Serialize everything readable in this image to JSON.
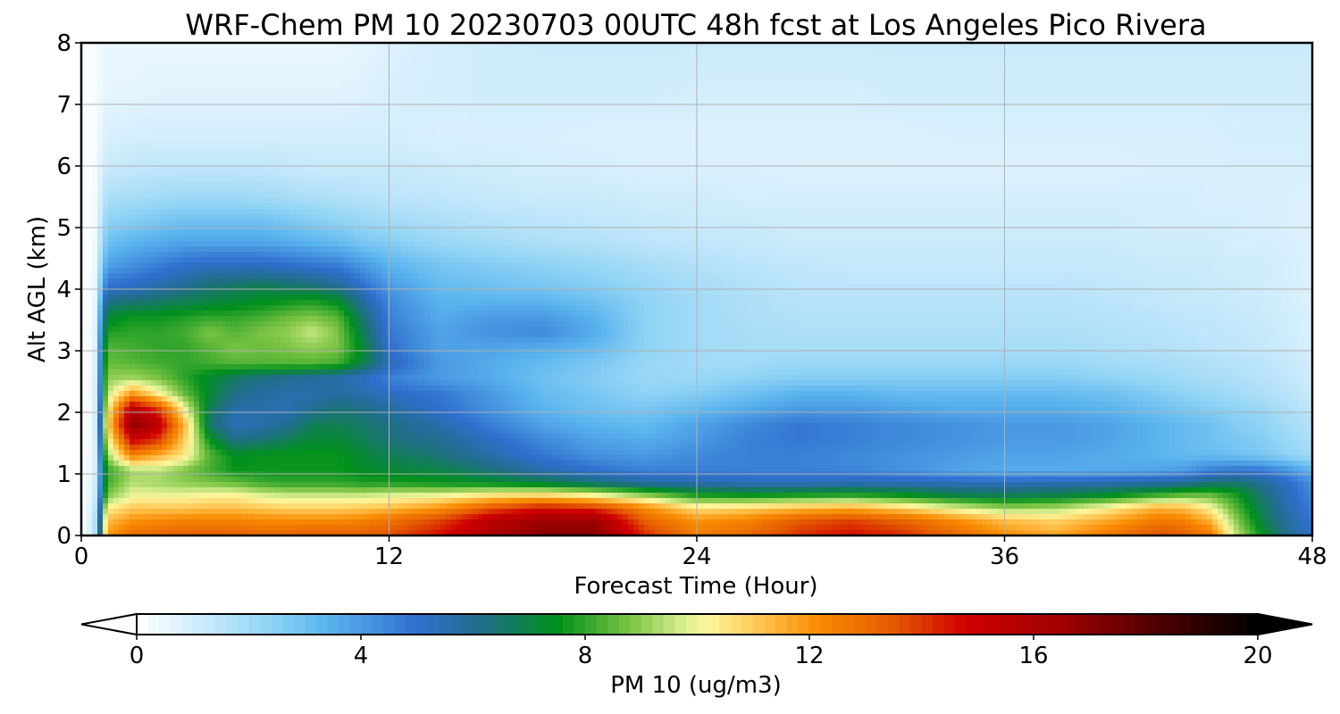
{
  "chart_data": {
    "type": "heatmap",
    "title": "WRF-Chem PM 10  20230703 00UTC 48h fcst at Los Angeles Pico Rivera",
    "xlabel": "Forecast Time (Hour)",
    "ylabel": "Alt AGL (km)",
    "xlim": [
      0,
      48
    ],
    "ylim": [
      0,
      8
    ],
    "xticks": [
      "0",
      "12",
      "24",
      "36",
      "48"
    ],
    "yticks": [
      "0",
      "1",
      "2",
      "3",
      "4",
      "5",
      "6",
      "7",
      "8"
    ],
    "grid": true,
    "colorbar": {
      "label": "PM 10  (ug/m3)",
      "range": [
        0,
        20
      ],
      "ticks": [
        "0",
        "4",
        "8",
        "12",
        "16",
        "20"
      ],
      "extend": "both",
      "colors": [
        {
          "v": 0,
          "c": "#ffffff"
        },
        {
          "v": 1,
          "c": "#d4eefc"
        },
        {
          "v": 2.4,
          "c": "#8fd3f5"
        },
        {
          "v": 3.4,
          "c": "#5ab4ee"
        },
        {
          "v": 5,
          "c": "#2f6fcf"
        },
        {
          "v": 6.2,
          "c": "#1f6e86"
        },
        {
          "v": 7.5,
          "c": "#00901c"
        },
        {
          "v": 8.8,
          "c": "#7cc444"
        },
        {
          "v": 9.8,
          "c": "#ddf094"
        },
        {
          "v": 10.2,
          "c": "#fff59a"
        },
        {
          "v": 11.2,
          "c": "#ffc04a"
        },
        {
          "v": 12.2,
          "c": "#f88a00"
        },
        {
          "v": 13.5,
          "c": "#e45a00"
        },
        {
          "v": 14.8,
          "c": "#d00000"
        },
        {
          "v": 16.5,
          "c": "#a00000"
        },
        {
          "v": 18.5,
          "c": "#420000"
        },
        {
          "v": 20,
          "c": "#000000"
        }
      ]
    },
    "x": [
      0,
      0.5,
      1,
      2,
      3,
      4,
      5,
      6,
      7,
      8,
      9,
      10,
      11,
      12,
      14,
      16,
      18,
      20,
      22,
      24,
      26,
      28,
      30,
      32,
      34,
      36,
      38,
      40,
      42,
      43,
      44,
      45,
      46,
      47,
      48
    ],
    "y": [
      0.05,
      0.25,
      0.45,
      0.65,
      0.85,
      1.05,
      1.3,
      1.55,
      1.8,
      2.05,
      2.3,
      2.55,
      2.8,
      3.05,
      3.3,
      3.55,
      3.8,
      4.05,
      4.4,
      4.75,
      5.1,
      5.5,
      5.9,
      6.5,
      7.2,
      8.0
    ],
    "z": [
      [
        0,
        1.2,
        11.8,
        12.8,
        13.0,
        13.2,
        13.2,
        13.2,
        13.0,
        13.0,
        13.2,
        13.2,
        13.2,
        13.5,
        14.5,
        16.0,
        17.0,
        17.0,
        14.0,
        12.5,
        13.0,
        14.0,
        14.5,
        14.0,
        13.0,
        12.0,
        11.5,
        12.5,
        13.5,
        13.2,
        12.5,
        9.5,
        7.5,
        6.0,
        5.0
      ],
      [
        0,
        1.2,
        11.2,
        12.0,
        12.2,
        12.4,
        12.4,
        12.4,
        12.2,
        12.2,
        12.2,
        12.2,
        12.4,
        12.8,
        13.8,
        15.5,
        16.5,
        16.5,
        13.2,
        12.0,
        12.4,
        13.4,
        13.8,
        13.2,
        12.2,
        11.2,
        10.8,
        11.6,
        12.6,
        12.4,
        11.4,
        9.0,
        7.0,
        5.8,
        4.8
      ],
      [
        0,
        1.0,
        10.2,
        11.0,
        11.0,
        11.0,
        11.2,
        11.2,
        11.0,
        10.8,
        10.8,
        10.8,
        11.0,
        11.2,
        12.0,
        13.5,
        14.5,
        14.0,
        12.2,
        10.5,
        10.8,
        11.2,
        11.5,
        10.8,
        9.8,
        9.0,
        9.2,
        10.2,
        11.5,
        11.2,
        10.2,
        8.4,
        6.8,
        5.6,
        4.6
      ],
      [
        0,
        0.8,
        8.8,
        10.0,
        10.0,
        10.0,
        10.2,
        10.2,
        9.8,
        9.6,
        9.6,
        9.6,
        9.6,
        9.8,
        10.0,
        10.6,
        10.8,
        10.2,
        9.0,
        7.8,
        7.6,
        7.8,
        8.0,
        7.6,
        7.0,
        6.8,
        7.0,
        7.4,
        8.2,
        8.6,
        8.6,
        7.8,
        6.5,
        5.4,
        4.4
      ],
      [
        0,
        0.8,
        8.2,
        9.4,
        9.2,
        9.0,
        8.8,
        8.6,
        8.2,
        8.0,
        8.0,
        8.0,
        7.8,
        7.8,
        7.6,
        7.4,
        7.0,
        6.4,
        5.8,
        5.6,
        5.4,
        5.4,
        5.5,
        5.5,
        5.4,
        5.4,
        5.5,
        5.6,
        5.8,
        6.0,
        6.4,
        6.6,
        6.0,
        5.2,
        4.2
      ],
      [
        0,
        0.6,
        8.0,
        9.2,
        9.4,
        8.8,
        8.2,
        7.6,
        7.6,
        7.6,
        7.6,
        7.6,
        7.4,
        7.2,
        7.0,
        6.4,
        5.6,
        5.0,
        4.6,
        4.6,
        4.6,
        4.6,
        4.5,
        4.2,
        3.8,
        3.6,
        3.6,
        3.6,
        3.8,
        4.0,
        4.6,
        4.9,
        4.8,
        4.2,
        3.4
      ],
      [
        0,
        0.5,
        9.0,
        12.5,
        11.5,
        10.5,
        8.4,
        7.4,
        7.6,
        7.6,
        7.6,
        7.6,
        7.2,
        6.8,
        6.4,
        5.6,
        4.8,
        4.2,
        4.0,
        4.4,
        4.6,
        4.6,
        4.4,
        4.2,
        4.0,
        3.8,
        3.8,
        3.6,
        3.4,
        3.2,
        3.2,
        3.0,
        2.8,
        2.4,
        2.0
      ],
      [
        0,
        0.5,
        9.8,
        15.0,
        14.0,
        11.0,
        7.6,
        6.2,
        6.4,
        6.8,
        7.2,
        7.2,
        6.8,
        6.4,
        6.0,
        5.2,
        4.4,
        3.8,
        3.6,
        4.0,
        4.6,
        4.8,
        4.6,
        4.4,
        4.2,
        4.0,
        4.0,
        3.8,
        3.4,
        3.2,
        3.0,
        2.8,
        2.6,
        2.2,
        1.8
      ],
      [
        0,
        0.5,
        10.6,
        17.0,
        15.5,
        11.5,
        6.5,
        5.4,
        5.6,
        6.0,
        6.8,
        6.8,
        6.6,
        6.2,
        5.6,
        4.6,
        3.8,
        3.4,
        3.2,
        3.8,
        4.4,
        4.8,
        4.6,
        4.4,
        4.2,
        4.0,
        4.0,
        3.8,
        3.4,
        3.2,
        3.0,
        2.6,
        2.4,
        2.0,
        1.6
      ],
      [
        0,
        0.5,
        10.0,
        15.8,
        14.0,
        10.2,
        6.8,
        5.6,
        5.6,
        5.4,
        6.0,
        6.4,
        6.2,
        5.8,
        5.0,
        4.2,
        3.4,
        3.0,
        2.8,
        3.2,
        3.6,
        4.0,
        4.0,
        3.8,
        3.6,
        3.6,
        3.6,
        3.4,
        3.0,
        2.8,
        2.6,
        2.4,
        2.2,
        1.8,
        1.4
      ],
      [
        0,
        0.5,
        9.4,
        12.0,
        10.4,
        8.6,
        7.2,
        6.2,
        5.8,
        5.6,
        5.6,
        5.8,
        5.6,
        5.2,
        4.8,
        4.0,
        3.2,
        2.8,
        2.4,
        2.6,
        3.0,
        3.4,
        3.4,
        3.2,
        3.2,
        3.2,
        3.2,
        3.0,
        2.6,
        2.4,
        2.2,
        2.0,
        1.8,
        1.6,
        1.2
      ],
      [
        0,
        0.5,
        9.0,
        9.2,
        8.8,
        8.0,
        7.2,
        6.6,
        6.2,
        6.0,
        5.8,
        5.6,
        5.2,
        4.6,
        4.0,
        3.6,
        3.0,
        2.6,
        2.2,
        2.2,
        2.4,
        2.6,
        2.6,
        2.6,
        2.6,
        2.6,
        2.6,
        2.4,
        2.2,
        2.0,
        1.9,
        1.8,
        1.6,
        1.4,
        1.1
      ],
      [
        0,
        0.4,
        8.6,
        8.4,
        8.2,
        8.0,
        8.2,
        8.4,
        8.4,
        8.4,
        8.4,
        8.2,
        7.0,
        5.4,
        4.0,
        3.6,
        3.2,
        2.8,
        2.2,
        2.0,
        2.0,
        2.2,
        2.2,
        2.2,
        2.2,
        2.2,
        2.2,
        2.0,
        1.9,
        1.8,
        1.7,
        1.6,
        1.5,
        1.3,
        1.0
      ],
      [
        0,
        0.4,
        8.4,
        8.2,
        8.0,
        8.0,
        8.4,
        8.8,
        8.6,
        8.8,
        9.0,
        8.8,
        7.2,
        5.0,
        3.8,
        3.8,
        3.6,
        3.2,
        2.4,
        2.0,
        1.9,
        1.9,
        1.9,
        1.9,
        1.9,
        1.9,
        1.9,
        1.8,
        1.7,
        1.6,
        1.5,
        1.4,
        1.3,
        1.2,
        0.9
      ],
      [
        0,
        0.4,
        7.8,
        8.0,
        8.0,
        8.2,
        8.8,
        8.4,
        8.8,
        9.0,
        9.6,
        8.8,
        6.8,
        4.8,
        3.8,
        4.2,
        4.4,
        3.6,
        2.4,
        2.0,
        1.9,
        1.8,
        1.8,
        1.8,
        1.8,
        1.8,
        1.8,
        1.7,
        1.6,
        1.5,
        1.4,
        1.4,
        1.3,
        1.1,
        0.9
      ],
      [
        0,
        0.3,
        7.2,
        7.6,
        7.6,
        7.8,
        8.0,
        8.0,
        8.2,
        8.6,
        8.8,
        8.4,
        6.4,
        4.6,
        3.6,
        4.0,
        4.0,
        3.4,
        2.4,
        2.0,
        1.8,
        1.7,
        1.7,
        1.7,
        1.7,
        1.7,
        1.7,
        1.6,
        1.5,
        1.4,
        1.4,
        1.3,
        1.2,
        1.1,
        0.9
      ],
      [
        0,
        0.3,
        6.2,
        6.4,
        6.6,
        6.8,
        7.0,
        7.2,
        7.4,
        7.6,
        7.8,
        7.4,
        5.8,
        4.4,
        3.4,
        3.4,
        3.4,
        3.0,
        2.4,
        2.0,
        1.8,
        1.6,
        1.6,
        1.6,
        1.6,
        1.6,
        1.6,
        1.5,
        1.4,
        1.3,
        1.3,
        1.2,
        1.2,
        1.0,
        0.8
      ],
      [
        0,
        0.3,
        5.0,
        5.2,
        5.6,
        6.0,
        6.4,
        6.6,
        6.8,
        6.6,
        6.4,
        6.0,
        5.0,
        4.0,
        3.2,
        3.0,
        2.8,
        2.6,
        2.2,
        1.9,
        1.7,
        1.5,
        1.5,
        1.5,
        1.5,
        1.5,
        1.5,
        1.4,
        1.3,
        1.3,
        1.2,
        1.2,
        1.1,
        1.0,
        0.8
      ],
      [
        0,
        0.2,
        3.8,
        4.2,
        4.6,
        5.0,
        5.2,
        5.2,
        5.2,
        5.0,
        4.8,
        4.6,
        4.0,
        3.4,
        2.8,
        2.6,
        2.4,
        2.2,
        1.9,
        1.7,
        1.5,
        1.4,
        1.3,
        1.3,
        1.3,
        1.3,
        1.3,
        1.3,
        1.2,
        1.2,
        1.2,
        1.1,
        1.1,
        1.0,
        0.8
      ],
      [
        0,
        0.2,
        3.0,
        3.4,
        3.6,
        3.8,
        3.8,
        3.8,
        3.8,
        3.6,
        3.4,
        3.2,
        2.8,
        2.6,
        2.2,
        2.0,
        1.8,
        1.7,
        1.5,
        1.4,
        1.3,
        1.2,
        1.2,
        1.2,
        1.2,
        1.2,
        1.2,
        1.2,
        1.1,
        1.1,
        1.1,
        1.0,
        1.0,
        0.9,
        0.8
      ],
      [
        0,
        0.2,
        2.4,
        2.6,
        2.8,
        3.0,
        3.0,
        3.0,
        3.0,
        2.8,
        2.6,
        2.4,
        2.2,
        2.0,
        1.8,
        1.6,
        1.5,
        1.4,
        1.3,
        1.2,
        1.2,
        1.1,
        1.1,
        1.1,
        1.1,
        1.1,
        1.1,
        1.1,
        1.0,
        1.0,
        1.0,
        1.0,
        0.9,
        0.9,
        0.8
      ],
      [
        0,
        0.2,
        1.8,
        1.9,
        2.0,
        2.1,
        2.1,
        2.1,
        2.0,
        1.9,
        1.8,
        1.7,
        1.6,
        1.5,
        1.4,
        1.3,
        1.2,
        1.2,
        1.1,
        1.1,
        1.0,
        1.0,
        1.0,
        1.0,
        1.0,
        1.0,
        1.0,
        1.0,
        1.0,
        1.0,
        0.9,
        0.9,
        0.9,
        0.9,
        0.8
      ],
      [
        0,
        0.2,
        1.3,
        1.4,
        1.5,
        1.5,
        1.5,
        1.5,
        1.5,
        1.4,
        1.3,
        1.3,
        1.3,
        1.3,
        1.2,
        1.1,
        1.0,
        1.0,
        0.9,
        0.9,
        0.9,
        0.8,
        0.8,
        0.8,
        0.8,
        0.8,
        0.8,
        0.8,
        0.9,
        0.9,
        0.9,
        0.9,
        0.9,
        0.9,
        0.9
      ],
      [
        0,
        0.2,
        0.9,
        1.0,
        1.0,
        1.0,
        1.0,
        1.0,
        1.0,
        1.0,
        1.0,
        1.0,
        1.0,
        1.0,
        0.9,
        0.9,
        0.9,
        0.8,
        0.8,
        0.8,
        0.8,
        0.8,
        0.8,
        0.8,
        0.9,
        0.9,
        0.9,
        0.9,
        0.9,
        0.9,
        0.9,
        1.0,
        1.0,
        1.0,
        1.0
      ],
      [
        0,
        0.2,
        0.6,
        0.6,
        0.7,
        0.7,
        0.7,
        0.7,
        0.7,
        0.7,
        0.7,
        0.7,
        0.8,
        0.9,
        1.0,
        1.1,
        1.1,
        1.1,
        1.1,
        1.0,
        1.0,
        1.0,
        1.0,
        1.1,
        1.1,
        1.1,
        1.1,
        1.1,
        1.1,
        1.1,
        1.1,
        1.1,
        1.1,
        1.1,
        1.1
      ],
      [
        0,
        0.2,
        0.5,
        0.5,
        0.5,
        0.5,
        0.5,
        0.5,
        0.5,
        0.5,
        0.5,
        0.5,
        0.6,
        0.8,
        1.0,
        1.1,
        1.2,
        1.2,
        1.2,
        1.2,
        1.2,
        1.2,
        1.2,
        1.2,
        1.2,
        1.2,
        1.2,
        1.2,
        1.2,
        1.2,
        1.2,
        1.2,
        1.2,
        1.2,
        1.2
      ]
    ]
  }
}
